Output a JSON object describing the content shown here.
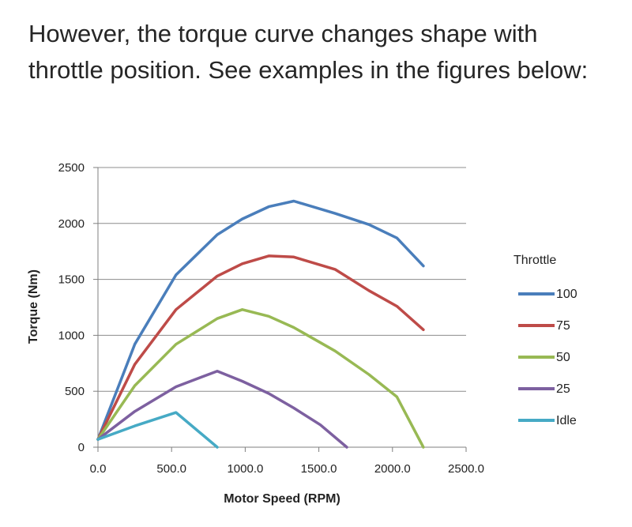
{
  "text": {
    "paragraph": "However, the torque curve changes shape with throttle position. See examples in the figures below:"
  },
  "chart_data": {
    "type": "line",
    "xlabel": "Motor Speed (RPM)",
    "ylabel": "Torque (Nm)",
    "xlim": [
      0,
      2500
    ],
    "ylim": [
      0,
      2500
    ],
    "x_ticks": [
      "0.0",
      "500.0",
      "1000.0",
      "1500.0",
      "2000.0",
      "2500.0"
    ],
    "y_ticks": [
      "0",
      "500",
      "1000",
      "1500",
      "2000",
      "2500"
    ],
    "grid": "horizontal",
    "legend": {
      "title": "Throttle",
      "placement": "right"
    },
    "series": [
      {
        "name": "100",
        "color": "#4a7ebb",
        "points": [
          [
            0,
            70
          ],
          [
            250,
            920
          ],
          [
            530,
            1540
          ],
          [
            810,
            1900
          ],
          [
            980,
            2040
          ],
          [
            1160,
            2150
          ],
          [
            1330,
            2200
          ],
          [
            1610,
            2090
          ],
          [
            1840,
            1990
          ],
          [
            2030,
            1870
          ],
          [
            2210,
            1620
          ]
        ]
      },
      {
        "name": "75",
        "color": "#be4b48",
        "points": [
          [
            0,
            70
          ],
          [
            250,
            740
          ],
          [
            530,
            1230
          ],
          [
            810,
            1530
          ],
          [
            980,
            1640
          ],
          [
            1160,
            1710
          ],
          [
            1330,
            1700
          ],
          [
            1610,
            1590
          ],
          [
            1840,
            1400
          ],
          [
            2030,
            1260
          ],
          [
            2210,
            1050
          ]
        ]
      },
      {
        "name": "50",
        "color": "#98b954",
        "points": [
          [
            0,
            70
          ],
          [
            250,
            550
          ],
          [
            530,
            920
          ],
          [
            810,
            1150
          ],
          [
            980,
            1230
          ],
          [
            1160,
            1170
          ],
          [
            1330,
            1070
          ],
          [
            1610,
            860
          ],
          [
            1840,
            650
          ],
          [
            2030,
            450
          ],
          [
            2210,
            0
          ]
        ]
      },
      {
        "name": "25",
        "color": "#7d60a0",
        "points": [
          [
            0,
            70
          ],
          [
            250,
            320
          ],
          [
            530,
            540
          ],
          [
            810,
            680
          ],
          [
            980,
            590
          ],
          [
            1160,
            480
          ],
          [
            1330,
            350
          ],
          [
            1510,
            200
          ],
          [
            1690,
            0
          ]
        ]
      },
      {
        "name": "Idle",
        "color": "#46aac5",
        "points": [
          [
            0,
            70
          ],
          [
            250,
            190
          ],
          [
            530,
            310
          ],
          [
            810,
            0
          ]
        ]
      }
    ]
  }
}
